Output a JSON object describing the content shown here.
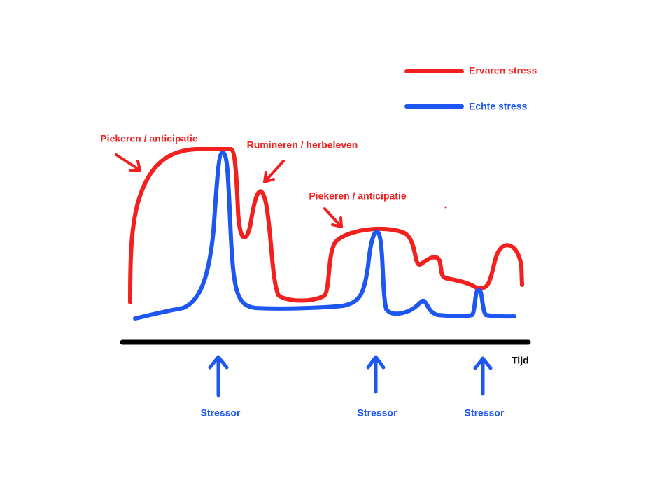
{
  "legend": [
    {
      "label": "Ervaren stress"
    },
    {
      "label": "Echte stress"
    }
  ],
  "annotations": [
    "Piekeren / anticipatie",
    "Rumineren / herbeleven",
    "Piekeren / anticipatie"
  ],
  "axis_label": "Tijd",
  "stressors": [
    "Stressor",
    "Stressor",
    "Stressor"
  ]
}
